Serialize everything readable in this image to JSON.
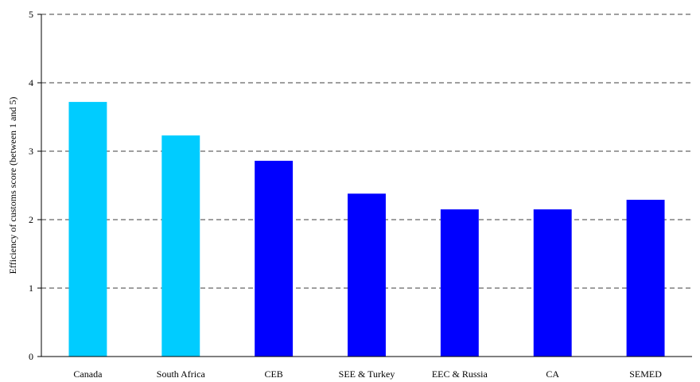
{
  "chart_data": {
    "type": "bar",
    "title": "",
    "xlabel": "",
    "ylabel": "Efficiency of customs score (between 1 and 5)",
    "ylim": [
      0,
      5
    ],
    "yticks": [
      0,
      1,
      2,
      3,
      4,
      5
    ],
    "grid": "horizontal dashed",
    "categories": [
      "Canada",
      "South Africa",
      "CEB",
      "SEE & Turkey",
      "EEC & Russia",
      "CA",
      "SEMED"
    ],
    "values": [
      3.72,
      3.23,
      2.86,
      2.38,
      2.15,
      2.15,
      2.29
    ],
    "bar_colors": [
      "#00ccff",
      "#00ccff",
      "#0000ff",
      "#0000ff",
      "#0000ff",
      "#0000ff",
      "#0000ff"
    ]
  }
}
